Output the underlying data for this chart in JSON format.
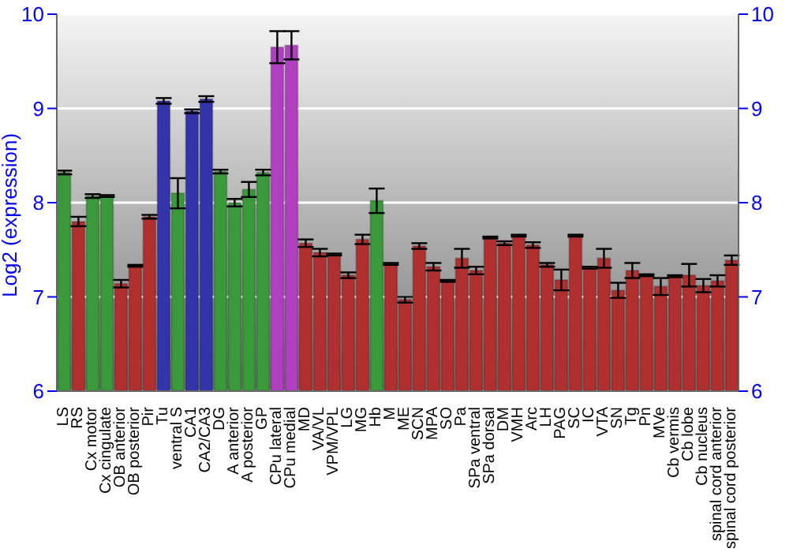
{
  "chart_data": {
    "type": "bar",
    "ylabel": "Log2 (expression)",
    "categories": [
      "LS",
      "RS",
      "Cx motor",
      "Cx cingulate",
      "OB anterior",
      "OB posterior",
      "Pir",
      "Tu",
      "ventral S",
      "CA1",
      "CA2/CA3",
      "DG",
      "A anterior",
      "A posterior",
      "GP",
      "CPu lateral",
      "CPu medial",
      "MD",
      "VA/VL",
      "VPM/VPL",
      "LG",
      "MG",
      "Hb",
      "M",
      "ME",
      "SCN",
      "MPA",
      "SO",
      "Pa",
      "SPa ventral",
      "SPa dorsal",
      "DM",
      "VMH",
      "Arc",
      "LH",
      "PAG",
      "SC",
      "IC",
      "VTA",
      "SN",
      "Tg",
      "Pn",
      "MVe",
      "Cb vermis",
      "Cb lobe",
      "Cb nucleus",
      "spinal cord anterior",
      "spinal cord posterior"
    ],
    "values": [
      8.32,
      7.8,
      8.07,
      8.07,
      7.14,
      7.33,
      7.85,
      9.08,
      8.1,
      8.97,
      9.1,
      8.33,
      8.0,
      8.14,
      8.32,
      9.65,
      9.67,
      7.57,
      7.47,
      7.45,
      7.23,
      7.61,
      8.02,
      7.35,
      6.97,
      7.54,
      7.32,
      7.17,
      7.41,
      7.28,
      7.63,
      7.57,
      7.65,
      7.55,
      7.34,
      7.18,
      7.65,
      7.31,
      7.41,
      7.07,
      7.28,
      7.23,
      7.11,
      7.22,
      7.23,
      7.12,
      7.17,
      7.39
    ],
    "errors": [
      0.02,
      0.05,
      0.02,
      0.01,
      0.04,
      0.01,
      0.02,
      0.03,
      0.16,
      0.02,
      0.03,
      0.02,
      0.04,
      0.08,
      0.03,
      0.17,
      0.15,
      0.04,
      0.04,
      0.01,
      0.03,
      0.05,
      0.13,
      0.01,
      0.03,
      0.03,
      0.04,
      0.01,
      0.1,
      0.04,
      0.01,
      0.02,
      0.01,
      0.03,
      0.02,
      0.11,
      0.01,
      0.01,
      0.1,
      0.08,
      0.08,
      0.01,
      0.09,
      0.01,
      0.12,
      0.07,
      0.06,
      0.05
    ],
    "colors": [
      "#3a9a3a",
      "#b03030",
      "#3a9a3a",
      "#3a9a3a",
      "#b03030",
      "#b03030",
      "#b03030",
      "#3333aa",
      "#3a9a3a",
      "#3333aa",
      "#3333aa",
      "#3a9a3a",
      "#3a9a3a",
      "#3a9a3a",
      "#3a9a3a",
      "#b040c0",
      "#b040c0",
      "#b03030",
      "#b03030",
      "#b03030",
      "#b03030",
      "#b03030",
      "#3a9a3a",
      "#b03030",
      "#b03030",
      "#b03030",
      "#b03030",
      "#b03030",
      "#b03030",
      "#b03030",
      "#b03030",
      "#b03030",
      "#b03030",
      "#b03030",
      "#b03030",
      "#b03030",
      "#b03030",
      "#b03030",
      "#b03030",
      "#b03030",
      "#b03030",
      "#b03030",
      "#b03030",
      "#b03030",
      "#b03030",
      "#b03030",
      "#b03030",
      "#b03030"
    ],
    "ylim": [
      6,
      10
    ],
    "yticks": [
      6,
      7,
      8,
      9,
      10
    ],
    "y2lim": [
      6,
      10
    ],
    "y2ticks": [
      6,
      7,
      8,
      9,
      10
    ],
    "grid": "y"
  }
}
